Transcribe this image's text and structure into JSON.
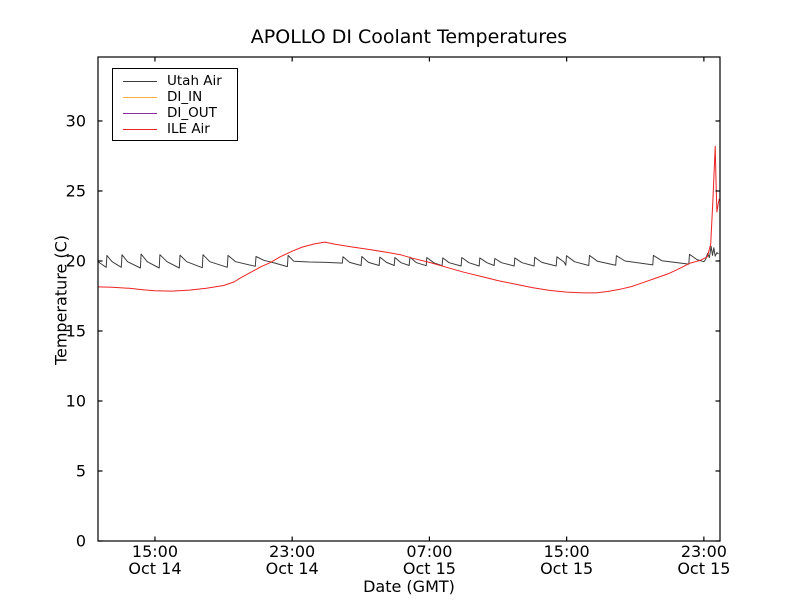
{
  "chart_data": {
    "type": "line",
    "title": "APOLLO DI Coolant Temperatures",
    "xlabel": "Date (GMT)",
    "ylabel": "Temperature (C)",
    "x_encoding": "hours since Oct 14 00:00 GMT",
    "xlim": [
      11.68,
      47.94
    ],
    "ylim": [
      0,
      34.57
    ],
    "grid": false,
    "legend_position": "upper left",
    "yticks": [
      {
        "v": 0,
        "label": "0"
      },
      {
        "v": 5,
        "label": "5"
      },
      {
        "v": 10,
        "label": "10"
      },
      {
        "v": 15,
        "label": "15"
      },
      {
        "v": 20,
        "label": "20"
      },
      {
        "v": 25,
        "label": "25"
      },
      {
        "v": 30,
        "label": "30"
      }
    ],
    "xticks": [
      {
        "t": 15,
        "line1": "15:00",
        "line2": "Oct 14"
      },
      {
        "t": 23,
        "line1": "23:00",
        "line2": "Oct 14"
      },
      {
        "t": 31,
        "line1": "07:00",
        "line2": "Oct 15"
      },
      {
        "t": 39,
        "line1": "15:00",
        "line2": "Oct 15"
      },
      {
        "t": 47,
        "line1": "23:00",
        "line2": "Oct 15"
      }
    ],
    "series": [
      {
        "name": "Utah Air",
        "color": "#3c3c3c",
        "points": [
          [
            11.68,
            19.95
          ],
          [
            11.95,
            19.72
          ],
          [
            12.16,
            19.55
          ],
          [
            12.2,
            20.4
          ],
          [
            12.5,
            19.95
          ],
          [
            13.04,
            19.55
          ],
          [
            13.08,
            20.45
          ],
          [
            13.4,
            19.95
          ],
          [
            14.15,
            19.5
          ],
          [
            14.19,
            20.5
          ],
          [
            14.55,
            19.95
          ],
          [
            15.25,
            19.5
          ],
          [
            15.29,
            20.45
          ],
          [
            15.7,
            19.95
          ],
          [
            16.42,
            19.5
          ],
          [
            16.46,
            20.42
          ],
          [
            16.85,
            19.95
          ],
          [
            17.76,
            19.52
          ],
          [
            17.8,
            20.45
          ],
          [
            18.2,
            19.95
          ],
          [
            19.22,
            19.55
          ],
          [
            19.26,
            20.4
          ],
          [
            19.7,
            19.95
          ],
          [
            20.85,
            19.62
          ],
          [
            20.89,
            20.32
          ],
          [
            21.35,
            20.05
          ],
          [
            22.0,
            19.85
          ],
          [
            22.72,
            19.6
          ],
          [
            22.76,
            20.4
          ],
          [
            23.1,
            19.98
          ],
          [
            24.0,
            19.93
          ],
          [
            25.0,
            19.9
          ],
          [
            25.92,
            19.85
          ],
          [
            25.96,
            20.3
          ],
          [
            26.35,
            19.9
          ],
          [
            27.02,
            19.68
          ],
          [
            27.06,
            20.32
          ],
          [
            27.45,
            19.9
          ],
          [
            28.07,
            19.68
          ],
          [
            28.11,
            20.28
          ],
          [
            28.5,
            19.9
          ],
          [
            28.95,
            19.68
          ],
          [
            28.99,
            20.25
          ],
          [
            29.35,
            19.88
          ],
          [
            29.82,
            19.68
          ],
          [
            29.86,
            20.28
          ],
          [
            30.25,
            19.88
          ],
          [
            30.81,
            19.66
          ],
          [
            30.85,
            20.25
          ],
          [
            31.25,
            19.88
          ],
          [
            31.74,
            19.66
          ],
          [
            31.78,
            20.22
          ],
          [
            32.15,
            19.88
          ],
          [
            32.85,
            19.64
          ],
          [
            32.89,
            20.25
          ],
          [
            33.3,
            19.88
          ],
          [
            33.9,
            19.64
          ],
          [
            33.94,
            20.22
          ],
          [
            34.35,
            19.88
          ],
          [
            34.77,
            19.68
          ],
          [
            34.81,
            20.18
          ],
          [
            35.2,
            19.88
          ],
          [
            35.94,
            19.64
          ],
          [
            35.98,
            20.22
          ],
          [
            36.4,
            19.88
          ],
          [
            37.1,
            19.64
          ],
          [
            37.14,
            20.26
          ],
          [
            37.55,
            19.9
          ],
          [
            38.39,
            19.64
          ],
          [
            38.43,
            20.3
          ],
          [
            38.85,
            19.92
          ],
          [
            38.95,
            19.7
          ],
          [
            38.99,
            20.38
          ],
          [
            39.45,
            19.95
          ],
          [
            40.29,
            19.68
          ],
          [
            40.33,
            20.4
          ],
          [
            40.8,
            19.98
          ],
          [
            41.86,
            19.7
          ],
          [
            41.9,
            20.38
          ],
          [
            42.4,
            20.0
          ],
          [
            44.02,
            19.72
          ],
          [
            44.06,
            20.4
          ],
          [
            44.55,
            20.02
          ],
          [
            46.12,
            19.78
          ],
          [
            46.16,
            20.48
          ],
          [
            46.6,
            20.1
          ],
          [
            47.0,
            19.95
          ],
          [
            47.1,
            20.1
          ],
          [
            47.22,
            20.55
          ],
          [
            47.32,
            20.25
          ],
          [
            47.42,
            21.05
          ],
          [
            47.5,
            20.4
          ],
          [
            47.58,
            20.95
          ],
          [
            47.66,
            20.35
          ],
          [
            47.76,
            20.6
          ],
          [
            47.86,
            20.5
          ]
        ]
      },
      {
        "name": "DI_IN",
        "color": "#ffb13b",
        "points": []
      },
      {
        "name": "DI_OUT",
        "color": "#8c2d9e",
        "points": []
      },
      {
        "name": "ILE Air",
        "color": "#ee2222",
        "points": [
          [
            11.68,
            18.15
          ],
          [
            12.5,
            18.12
          ],
          [
            13.5,
            18.05
          ],
          [
            14.3,
            17.95
          ],
          [
            15.0,
            17.88
          ],
          [
            16.0,
            17.85
          ],
          [
            17.0,
            17.92
          ],
          [
            18.0,
            18.05
          ],
          [
            19.0,
            18.25
          ],
          [
            19.6,
            18.5
          ],
          [
            20.0,
            18.8
          ],
          [
            20.6,
            19.2
          ],
          [
            21.2,
            19.6
          ],
          [
            21.71,
            19.88
          ],
          [
            22.3,
            20.3
          ],
          [
            23.0,
            20.7
          ],
          [
            23.6,
            21.0
          ],
          [
            24.3,
            21.22
          ],
          [
            24.91,
            21.35
          ],
          [
            25.5,
            21.2
          ],
          [
            26.5,
            21.0
          ],
          [
            27.5,
            20.82
          ],
          [
            28.5,
            20.62
          ],
          [
            29.3,
            20.45
          ],
          [
            30.0,
            20.2
          ],
          [
            31.0,
            19.9
          ],
          [
            32.0,
            19.55
          ],
          [
            33.0,
            19.2
          ],
          [
            34.0,
            18.9
          ],
          [
            35.0,
            18.6
          ],
          [
            36.0,
            18.35
          ],
          [
            37.0,
            18.1
          ],
          [
            38.0,
            17.9
          ],
          [
            39.0,
            17.78
          ],
          [
            40.0,
            17.72
          ],
          [
            40.7,
            17.72
          ],
          [
            41.4,
            17.82
          ],
          [
            42.1,
            17.98
          ],
          [
            42.8,
            18.18
          ],
          [
            43.5,
            18.48
          ],
          [
            44.2,
            18.78
          ],
          [
            44.9,
            19.08
          ],
          [
            45.6,
            19.48
          ],
          [
            46.2,
            19.85
          ],
          [
            46.8,
            20.05
          ],
          [
            47.2,
            20.3
          ],
          [
            47.4,
            21.2
          ],
          [
            47.52,
            24.2
          ],
          [
            47.62,
            27.0
          ],
          [
            47.66,
            28.2
          ],
          [
            47.72,
            25.2
          ],
          [
            47.76,
            23.5
          ],
          [
            47.83,
            24.05
          ],
          [
            47.9,
            24.45
          ]
        ]
      }
    ]
  }
}
